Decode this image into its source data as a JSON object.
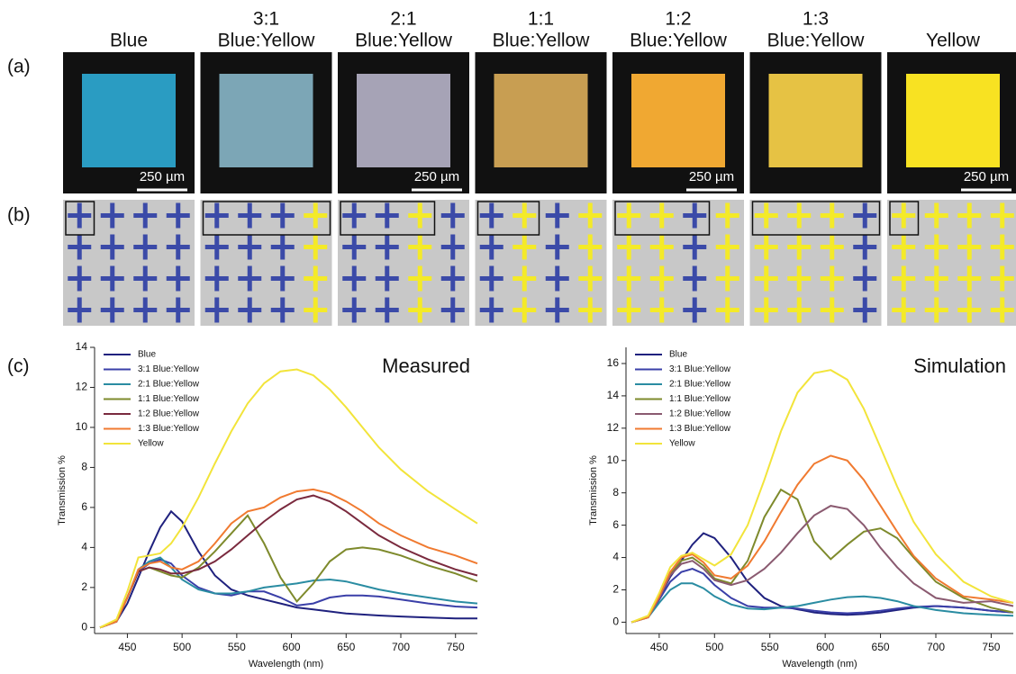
{
  "panel_labels": [
    "(a)",
    "(b)",
    "(c)"
  ],
  "columns": [
    {
      "title": [
        "Blue"
      ],
      "swatch": "#2a9cc2",
      "scale_bar": "250 µm",
      "unit": [
        "#3b4aa8"
      ]
    },
    {
      "title": [
        "3:1",
        "Blue:Yellow"
      ],
      "swatch": "#7ca6b6",
      "unit": [
        "#3b4aa8",
        "#3b4aa8",
        "#3b4aa8",
        "#f4ea28"
      ]
    },
    {
      "title": [
        "2:1",
        "Blue:Yellow"
      ],
      "swatch": "#a6a3b6",
      "scale_bar": "250 µm",
      "unit": [
        "#3b4aa8",
        "#3b4aa8",
        "#f4ea28"
      ]
    },
    {
      "title": [
        "1:1",
        "Blue:Yellow"
      ],
      "swatch": "#c89e52",
      "unit": [
        "#3b4aa8",
        "#f4ea28"
      ]
    },
    {
      "title": [
        "1:2",
        "Blue:Yellow"
      ],
      "swatch": "#f0a832",
      "scale_bar": "250 µm",
      "unit": [
        "#f4ea28",
        "#f4ea28",
        "#3b4aa8"
      ]
    },
    {
      "title": [
        "1:3",
        "Blue:Yellow"
      ],
      "swatch": "#e6c244",
      "unit": [
        "#f4ea28",
        "#f4ea28",
        "#f4ea28",
        "#3b4aa8"
      ]
    },
    {
      "title": [
        "Yellow"
      ],
      "swatch": "#f8e222",
      "scale_bar": "250 µm",
      "unit": [
        "#f4ea28"
      ]
    }
  ],
  "chart_data": [
    {
      "type": "line",
      "title": "Measured",
      "x_label": "Wavelength (nm)",
      "y_label": "Transmission %",
      "xlim": [
        420,
        770
      ],
      "ylim": [
        -0.3,
        14
      ],
      "xticks": [
        450,
        500,
        550,
        600,
        650,
        700,
        750
      ],
      "yticks": [
        0,
        2,
        4,
        6,
        8,
        10,
        12,
        14
      ],
      "legend": "upper left",
      "x": [
        425,
        440,
        450,
        460,
        470,
        480,
        490,
        500,
        515,
        530,
        545,
        560,
        575,
        590,
        605,
        620,
        635,
        650,
        665,
        680,
        700,
        725,
        750,
        770
      ],
      "series": [
        {
          "name": "Blue",
          "color": "#1f217e",
          "values": [
            0,
            0.3,
            1.2,
            2.5,
            3.8,
            5.0,
            5.8,
            5.3,
            3.8,
            2.6,
            1.9,
            1.6,
            1.4,
            1.2,
            1.0,
            0.9,
            0.8,
            0.7,
            0.65,
            0.6,
            0.55,
            0.5,
            0.45,
            0.45
          ]
        },
        {
          "name": "3:1 Blue:Yellow",
          "color": "#3a3fa8",
          "values": [
            0,
            0.3,
            1.5,
            2.8,
            3.2,
            3.4,
            3.2,
            2.6,
            2.0,
            1.7,
            1.6,
            1.8,
            1.8,
            1.5,
            1.1,
            1.2,
            1.5,
            1.6,
            1.6,
            1.55,
            1.4,
            1.2,
            1.05,
            1.0
          ]
        },
        {
          "name": "2:1 Blue:Yellow",
          "color": "#2a8ca2",
          "values": [
            0,
            0.3,
            1.5,
            2.9,
            3.3,
            3.5,
            3.0,
            2.4,
            1.9,
            1.7,
            1.7,
            1.8,
            2.0,
            2.1,
            2.2,
            2.35,
            2.4,
            2.3,
            2.1,
            1.9,
            1.7,
            1.5,
            1.3,
            1.2
          ]
        },
        {
          "name": "1:1 Blue:Yellow",
          "color": "#7e8a2c",
          "values": [
            0,
            0.3,
            1.5,
            2.8,
            3.0,
            2.8,
            2.6,
            2.5,
            3.0,
            3.8,
            4.7,
            5.6,
            4.2,
            2.5,
            1.3,
            2.2,
            3.3,
            3.9,
            4.0,
            3.9,
            3.6,
            3.1,
            2.7,
            2.3
          ]
        },
        {
          "name": "1:2 Blue:Yellow",
          "color": "#7a2a3e",
          "values": [
            0,
            0.3,
            1.5,
            2.8,
            3.0,
            2.9,
            2.7,
            2.7,
            2.9,
            3.3,
            3.9,
            4.6,
            5.3,
            5.9,
            6.4,
            6.6,
            6.3,
            5.8,
            5.2,
            4.6,
            4.0,
            3.4,
            2.9,
            2.6
          ]
        },
        {
          "name": "1:3 Blue:Yellow",
          "color": "#f07a30",
          "values": [
            0,
            0.3,
            1.5,
            2.9,
            3.2,
            3.3,
            3.0,
            2.9,
            3.3,
            4.2,
            5.2,
            5.8,
            6.0,
            6.5,
            6.8,
            6.9,
            6.7,
            6.3,
            5.8,
            5.2,
            4.6,
            4.0,
            3.6,
            3.2
          ]
        },
        {
          "name": "Yellow",
          "color": "#f2e43a",
          "values": [
            0,
            0.4,
            1.8,
            3.5,
            3.6,
            3.7,
            4.2,
            5.0,
            6.5,
            8.2,
            9.8,
            11.2,
            12.2,
            12.8,
            12.9,
            12.6,
            11.9,
            11.0,
            10.0,
            9.0,
            7.9,
            6.8,
            5.9,
            5.2
          ]
        }
      ]
    },
    {
      "type": "line",
      "title": "Simulation",
      "x_label": "Wavelength (nm)",
      "y_label": "Transmission %",
      "xlim": [
        420,
        770
      ],
      "ylim": [
        -0.7,
        17
      ],
      "xticks": [
        450,
        500,
        550,
        600,
        650,
        700,
        750
      ],
      "yticks": [
        0,
        2,
        4,
        6,
        8,
        10,
        12,
        14,
        16
      ],
      "legend": "upper left",
      "x": [
        425,
        440,
        450,
        460,
        470,
        480,
        490,
        500,
        515,
        530,
        545,
        560,
        575,
        590,
        605,
        620,
        635,
        650,
        665,
        680,
        700,
        725,
        750,
        770
      ],
      "series": [
        {
          "name": "Blue",
          "color": "#1f217e",
          "values": [
            0,
            0.3,
            1.5,
            2.8,
            3.8,
            4.8,
            5.5,
            5.2,
            4.0,
            2.5,
            1.5,
            1.0,
            0.8,
            0.6,
            0.5,
            0.45,
            0.5,
            0.6,
            0.75,
            0.9,
            1.0,
            0.9,
            0.7,
            0.6
          ]
        },
        {
          "name": "3:1 Blue:Yellow",
          "color": "#3a3fa8",
          "values": [
            0,
            0.3,
            1.4,
            2.5,
            3.1,
            3.3,
            3.0,
            2.3,
            1.5,
            1.0,
            0.9,
            0.9,
            0.85,
            0.7,
            0.6,
            0.55,
            0.6,
            0.7,
            0.85,
            0.95,
            1.0,
            0.9,
            0.7,
            0.6
          ]
        },
        {
          "name": "2:1 Blue:Yellow",
          "color": "#2a8ca2",
          "values": [
            0,
            0.3,
            1.2,
            2.0,
            2.4,
            2.4,
            2.1,
            1.6,
            1.1,
            0.85,
            0.8,
            0.9,
            1.0,
            1.2,
            1.4,
            1.55,
            1.6,
            1.5,
            1.3,
            1.0,
            0.75,
            0.55,
            0.45,
            0.4
          ]
        },
        {
          "name": "1:1 Blue:Yellow",
          "color": "#7e8a2c",
          "values": [
            0,
            0.3,
            1.6,
            3.0,
            3.8,
            4.0,
            3.5,
            2.7,
            2.4,
            3.8,
            6.5,
            8.2,
            7.6,
            5.0,
            3.9,
            4.8,
            5.6,
            5.8,
            5.2,
            4.0,
            2.5,
            1.5,
            0.9,
            0.6
          ]
        },
        {
          "name": "1:2 Blue:Yellow",
          "color": "#8a5a70",
          "values": [
            0,
            0.3,
            1.5,
            2.9,
            3.6,
            3.8,
            3.3,
            2.6,
            2.3,
            2.6,
            3.3,
            4.3,
            5.5,
            6.6,
            7.2,
            7.0,
            6.0,
            4.6,
            3.4,
            2.4,
            1.5,
            1.2,
            1.3,
            1.0
          ]
        },
        {
          "name": "1:3 Blue:Yellow",
          "color": "#f07a30",
          "values": [
            0,
            0.3,
            1.6,
            3.1,
            4.0,
            4.2,
            3.7,
            2.9,
            2.7,
            3.5,
            5.0,
            6.8,
            8.5,
            9.8,
            10.3,
            10.0,
            8.8,
            7.2,
            5.6,
            4.1,
            2.7,
            1.6,
            1.4,
            1.2
          ]
        },
        {
          "name": "Yellow",
          "color": "#f2e43a",
          "values": [
            0,
            0.4,
            1.8,
            3.4,
            4.1,
            4.3,
            3.9,
            3.5,
            4.2,
            6.0,
            8.8,
            11.8,
            14.2,
            15.4,
            15.6,
            15.0,
            13.2,
            10.8,
            8.4,
            6.2,
            4.2,
            2.5,
            1.6,
            1.2
          ]
        }
      ]
    }
  ]
}
